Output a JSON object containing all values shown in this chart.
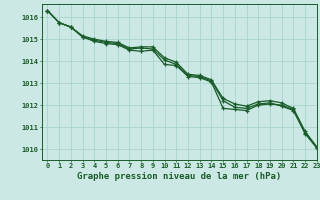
{
  "xlabel": "Graphe pression niveau de la mer (hPa)",
  "xlim": [
    -0.5,
    23
  ],
  "ylim": [
    1009.5,
    1016.6
  ],
  "yticks": [
    1010,
    1011,
    1012,
    1013,
    1014,
    1015,
    1016
  ],
  "xticks": [
    0,
    1,
    2,
    3,
    4,
    5,
    6,
    7,
    8,
    9,
    10,
    11,
    12,
    13,
    14,
    15,
    16,
    17,
    18,
    19,
    20,
    21,
    22,
    23
  ],
  "bg_color": "#cce8e4",
  "line_color": "#1a5c2a",
  "grid_color": "#a8d4cc",
  "series1": [
    1016.3,
    1015.75,
    1015.55,
    1015.1,
    1014.9,
    1014.8,
    1014.75,
    1014.5,
    1014.45,
    1014.5,
    1013.85,
    1013.8,
    1013.3,
    1013.25,
    1013.05,
    1011.85,
    1011.8,
    1011.75,
    1012.0,
    1012.05,
    1012.0,
    1011.8,
    1010.75,
    1010.05
  ],
  "series2": [
    1016.3,
    1015.75,
    1015.55,
    1015.1,
    1014.95,
    1014.85,
    1014.8,
    1014.55,
    1014.6,
    1014.55,
    1014.05,
    1013.85,
    1013.35,
    1013.3,
    1013.1,
    1012.2,
    1011.9,
    1011.85,
    1012.05,
    1012.1,
    1011.95,
    1011.75,
    1010.7,
    1010.05
  ],
  "series3": [
    1016.3,
    1015.75,
    1015.55,
    1015.15,
    1015.0,
    1014.9,
    1014.85,
    1014.6,
    1014.65,
    1014.65,
    1014.15,
    1013.95,
    1013.4,
    1013.35,
    1013.15,
    1012.3,
    1012.05,
    1011.95,
    1012.15,
    1012.2,
    1012.1,
    1011.85,
    1010.8,
    1010.1
  ]
}
